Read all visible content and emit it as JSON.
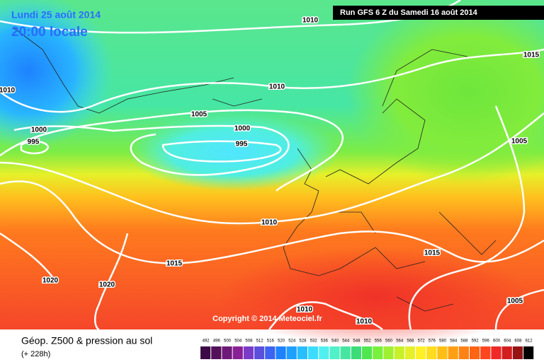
{
  "header": {
    "date": "Lundi 25 août 2014",
    "time": "20:00 locale",
    "run": "Run GFS 6 Z du Samedi 16 août 2014"
  },
  "isobars": [
    "1010",
    "1015",
    "1010",
    "1010",
    "1005",
    "1000",
    "995",
    "1000",
    "995",
    "1005",
    "1010",
    "1015",
    "1015",
    "1020",
    "1020",
    "1010",
    "1010",
    "1005"
  ],
  "copyright": "Copyright © 2014 Meteociel.fr",
  "footer": {
    "title": "Géop. Z500 & pression au sol",
    "lead": "(+ 228h)"
  },
  "scale": [
    "492",
    "496",
    "500",
    "504",
    "508",
    "512",
    "516",
    "520",
    "524",
    "528",
    "532",
    "536",
    "540",
    "544",
    "548",
    "552",
    "556",
    "560",
    "564",
    "568",
    "572",
    "576",
    "580",
    "584",
    "588",
    "592",
    "596",
    "600",
    "604",
    "608",
    "612"
  ]
}
